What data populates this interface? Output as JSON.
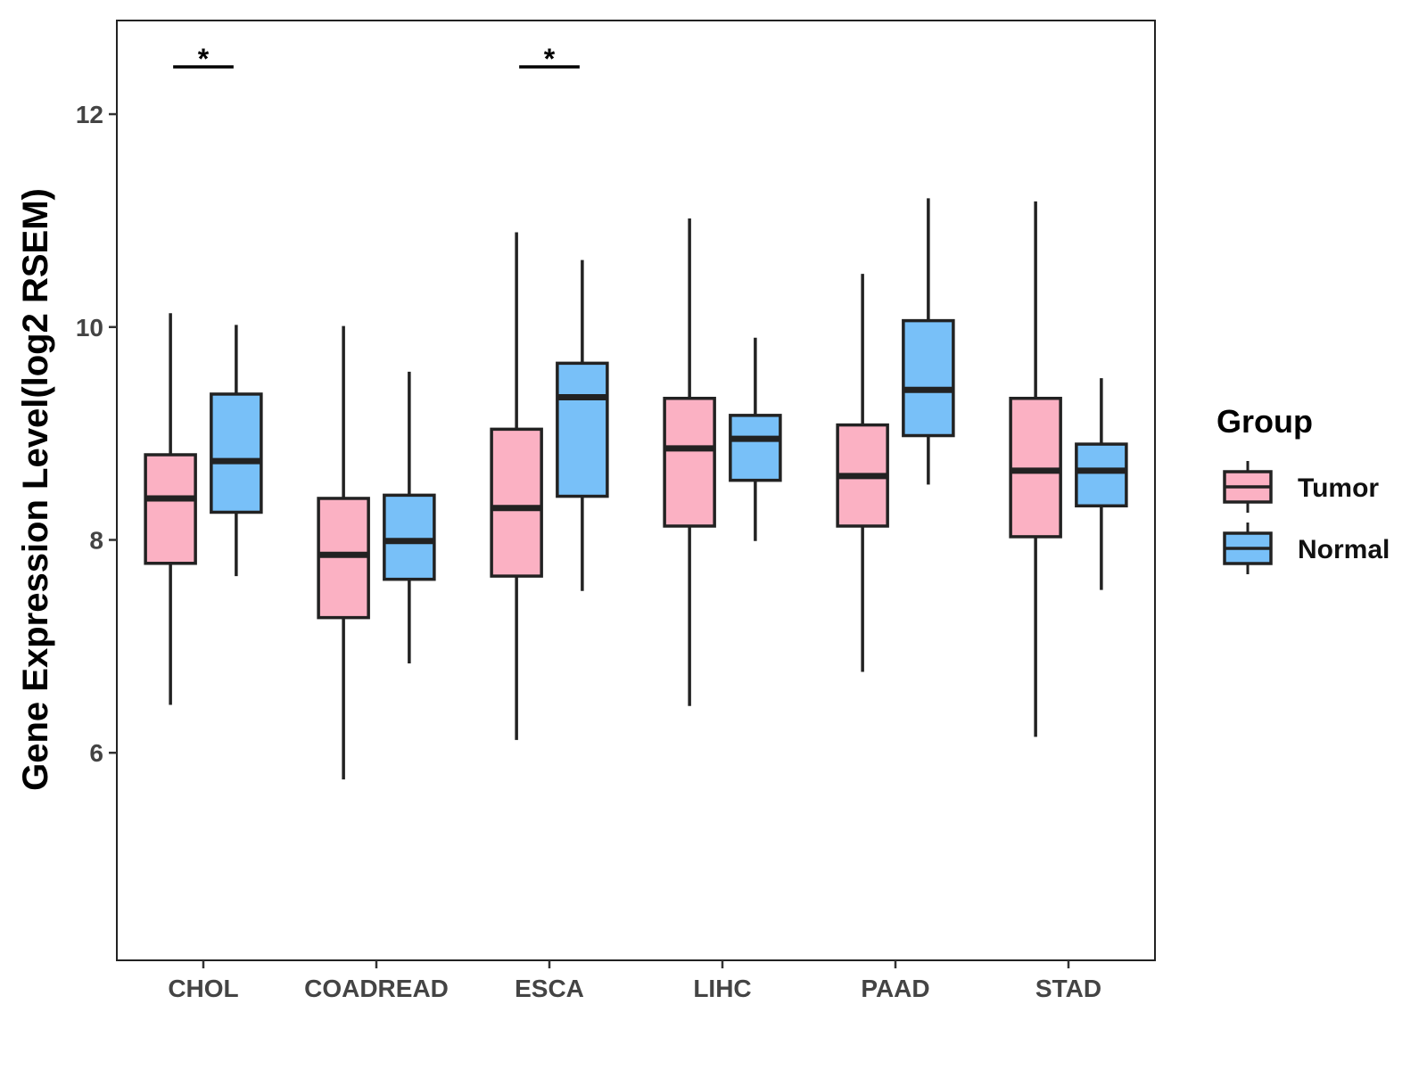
{
  "chart_data": {
    "type": "boxplot",
    "title": "",
    "xlabel": "",
    "ylabel": "Gene Expression Level(log2 RSEM)",
    "ylim": [
      4.05,
      12.88
    ],
    "yticks": [
      6,
      8,
      10,
      12
    ],
    "grid": false,
    "categories": [
      "CHOL",
      "COADREAD",
      "ESCA",
      "LIHC",
      "PAAD",
      "STAD"
    ],
    "legend": {
      "title": "Group",
      "position": "right",
      "entries": [
        {
          "name": "Tumor",
          "color": "#FBB1C3"
        },
        {
          "name": "Normal",
          "color": "#78C0F8"
        }
      ]
    },
    "series": [
      {
        "name": "Tumor",
        "color": "#FBB1C3",
        "boxes": [
          {
            "min": 6.45,
            "q1": 7.78,
            "median": 8.39,
            "q3": 8.8,
            "max": 10.13
          },
          {
            "min": 5.75,
            "q1": 7.27,
            "median": 7.86,
            "q3": 8.39,
            "max": 10.01
          },
          {
            "min": 6.12,
            "q1": 7.66,
            "median": 8.3,
            "q3": 9.04,
            "max": 10.89
          },
          {
            "min": 6.44,
            "q1": 8.13,
            "median": 8.86,
            "q3": 9.33,
            "max": 11.02
          },
          {
            "min": 6.76,
            "q1": 8.13,
            "median": 8.6,
            "q3": 9.08,
            "max": 10.5
          },
          {
            "min": 6.15,
            "q1": 8.03,
            "median": 8.65,
            "q3": 9.33,
            "max": 11.18
          }
        ]
      },
      {
        "name": "Normal",
        "color": "#78C0F8",
        "boxes": [
          {
            "min": 7.66,
            "q1": 8.26,
            "median": 8.74,
            "q3": 9.37,
            "max": 10.02
          },
          {
            "min": 6.84,
            "q1": 7.63,
            "median": 7.99,
            "q3": 8.42,
            "max": 9.58
          },
          {
            "min": 7.52,
            "q1": 8.41,
            "median": 9.34,
            "q3": 9.66,
            "max": 10.63
          },
          {
            "min": 7.99,
            "q1": 8.56,
            "median": 8.95,
            "q3": 9.17,
            "max": 9.9
          },
          {
            "min": 8.52,
            "q1": 8.98,
            "median": 9.41,
            "q3": 10.06,
            "max": 11.21
          },
          {
            "min": 7.53,
            "q1": 8.32,
            "median": 8.65,
            "q3": 8.9,
            "max": 9.52
          }
        ]
      }
    ],
    "significance": [
      {
        "category": "CHOL",
        "label": "*"
      },
      {
        "category": "ESCA",
        "label": "*"
      }
    ]
  }
}
